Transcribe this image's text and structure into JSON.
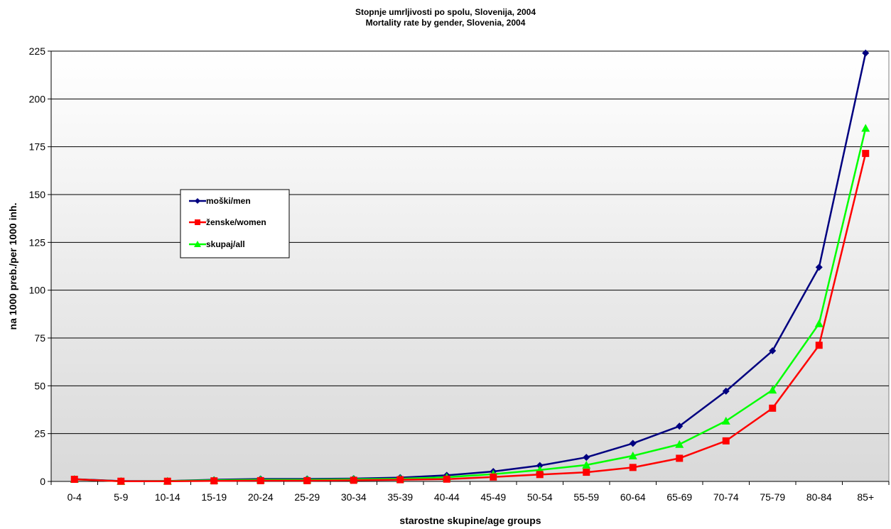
{
  "chart_data": {
    "type": "line",
    "title": "Stopnje umrljivosti po spolu, Slovenija, 2004",
    "subtitle": "Mortality rate by gender, Slovenia, 2004",
    "xlabel": "starostne skupine/age groups",
    "ylabel": "na 1000 preb./per 1000 inh.",
    "ylim": [
      0,
      225
    ],
    "yticks": [
      0,
      25,
      50,
      75,
      100,
      125,
      150,
      175,
      200,
      225
    ],
    "grid": true,
    "legend_position": "left",
    "categories": [
      "0-4",
      "5-9",
      "10-14",
      "15-19",
      "20-24",
      "25-29",
      "30-34",
      "35-39",
      "40-44",
      "45-49",
      "50-54",
      "55-59",
      "60-64",
      "65-69",
      "70-74",
      "75-79",
      "80-84",
      "85+"
    ],
    "series": [
      {
        "name": "moški/men",
        "color": "#000080",
        "marker": "diamond",
        "values": [
          1.2,
          0.2,
          0.2,
          0.9,
          1.3,
          1.3,
          1.5,
          2.0,
          3.2,
          5.2,
          8.3,
          12.6,
          19.9,
          28.9,
          47.2,
          68.3,
          112.0,
          224.0
        ]
      },
      {
        "name": "ženske/women",
        "color": "#ff0000",
        "marker": "square",
        "values": [
          1.1,
          0.1,
          0.1,
          0.3,
          0.4,
          0.4,
          0.6,
          0.9,
          1.2,
          2.3,
          3.6,
          4.8,
          7.3,
          12.1,
          21.2,
          38.3,
          71.2,
          171.5
        ]
      },
      {
        "name": "skupaj/all",
        "color": "#00ff00",
        "marker": "triangle",
        "values": [
          1.1,
          0.1,
          0.2,
          0.6,
          0.9,
          0.9,
          1.1,
          1.4,
          2.2,
          3.8,
          6.0,
          8.6,
          13.4,
          19.4,
          31.6,
          47.8,
          82.5,
          184.7
        ]
      }
    ]
  }
}
